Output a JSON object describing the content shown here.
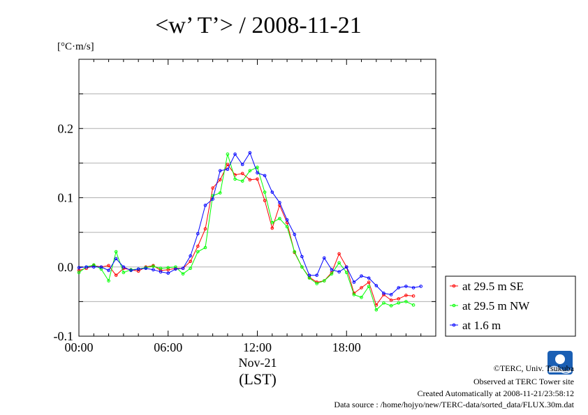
{
  "chart_data": {
    "type": "line",
    "title": "<w’ T’> / 2008-11-21",
    "yunit": "[°C·m/s]",
    "xlabel": "(LST)",
    "xdate_label": "Nov-21",
    "x_tick_labels": [
      "00:00",
      "06:00",
      "12:00",
      "18:00"
    ],
    "x_ticks": [
      0,
      6,
      12,
      18
    ],
    "y_tick_labels": [
      "-0.1",
      "0.0",
      "0.1",
      "0.2"
    ],
    "y_ticks": [
      -0.1,
      0.0,
      0.1,
      0.2
    ],
    "xlim": [
      0,
      24
    ],
    "ylim": [
      -0.1,
      0.3
    ],
    "grid": true,
    "legend_position": "right",
    "series": [
      {
        "name": "at 29.5 m SE",
        "color": "#ff0000",
        "x": [
          0,
          0.5,
          1,
          1.5,
          2,
          2.5,
          3,
          3.5,
          4,
          4.5,
          5,
          5.5,
          6,
          6.5,
          7,
          7.5,
          8,
          8.5,
          9,
          9.5,
          10,
          10.5,
          11,
          11.5,
          12,
          12.5,
          13,
          13.5,
          14,
          14.5,
          15,
          15.5,
          16,
          16.5,
          17,
          17.5,
          18,
          18.5,
          19,
          19.5,
          20,
          20.5,
          21,
          21.5,
          22,
          22.5,
          23
        ],
        "y": [
          -0.005,
          -0.002,
          0.002,
          0.0,
          0.002,
          -0.012,
          -0.002,
          -0.004,
          -0.006,
          0.0,
          0.002,
          -0.005,
          -0.004,
          -0.002,
          -0.002,
          0.008,
          0.03,
          0.055,
          0.114,
          0.126,
          0.148,
          0.133,
          0.135,
          0.126,
          0.127,
          0.096,
          0.056,
          0.089,
          0.064,
          0.021,
          0.0,
          -0.015,
          -0.022,
          -0.02,
          -0.008,
          0.019,
          0.0,
          -0.038,
          -0.03,
          -0.022,
          -0.055,
          -0.04,
          -0.048,
          -0.046,
          -0.041,
          -0.042,
          null
        ]
      },
      {
        "name": "at 29.5 m NW",
        "color": "#00ff00",
        "x": [
          0,
          0.5,
          1,
          1.5,
          2,
          2.5,
          3,
          3.5,
          4,
          4.5,
          5,
          5.5,
          6,
          6.5,
          7,
          7.5,
          8,
          8.5,
          9,
          9.5,
          10,
          10.5,
          11,
          11.5,
          12,
          12.5,
          13,
          13.5,
          14,
          14.5,
          15,
          15.5,
          16,
          16.5,
          17,
          17.5,
          18,
          18.5,
          19,
          19.5,
          20,
          20.5,
          21,
          21.5,
          22,
          22.5,
          23
        ],
        "y": [
          -0.008,
          0.0,
          0.003,
          -0.003,
          -0.02,
          0.022,
          -0.008,
          -0.004,
          -0.003,
          -0.001,
          0.001,
          -0.002,
          -0.001,
          0.0,
          -0.01,
          -0.002,
          0.022,
          0.028,
          0.103,
          0.107,
          0.163,
          0.127,
          0.124,
          0.139,
          0.144,
          0.108,
          0.064,
          0.07,
          0.058,
          0.022,
          0.0,
          -0.016,
          -0.024,
          -0.02,
          -0.01,
          0.006,
          -0.008,
          -0.04,
          -0.044,
          -0.028,
          -0.062,
          -0.052,
          -0.056,
          -0.052,
          -0.05,
          -0.055,
          null
        ]
      },
      {
        "name": "at 1.6 m",
        "color": "#0000ff",
        "x": [
          0,
          0.5,
          1,
          1.5,
          2,
          2.5,
          3,
          3.5,
          4,
          4.5,
          5,
          5.5,
          6,
          6.5,
          7,
          7.5,
          8,
          8.5,
          9,
          9.5,
          10,
          10.5,
          11,
          11.5,
          12,
          12.5,
          13,
          13.5,
          14,
          14.5,
          15,
          15.5,
          16,
          16.5,
          17,
          17.5,
          18,
          18.5,
          19,
          19.5,
          20,
          20.5,
          21,
          21.5,
          22,
          22.5,
          23
        ],
        "y": [
          -0.001,
          0.0,
          0.0,
          0.0,
          -0.005,
          0.012,
          0.0,
          -0.005,
          -0.003,
          -0.002,
          -0.004,
          -0.007,
          -0.009,
          -0.003,
          -0.002,
          0.016,
          0.048,
          0.089,
          0.098,
          0.139,
          0.141,
          0.163,
          0.148,
          0.165,
          0.136,
          0.132,
          0.108,
          0.093,
          0.068,
          0.047,
          0.015,
          -0.012,
          -0.012,
          0.013,
          -0.004,
          -0.007,
          0.0,
          -0.022,
          -0.013,
          -0.016,
          -0.027,
          -0.038,
          -0.04,
          -0.03,
          -0.028,
          -0.03,
          -0.028
        ]
      }
    ]
  },
  "credits": {
    "copyright": "©TERC, Univ. Tsukuba",
    "observed": "Observed at TERC Tower site",
    "created": "Created Automatically at 2008-11-21/23:58:12",
    "source": "Data source : /home/hojyo/new/TERC-data/sorted_data/FLUX.30m.dat"
  },
  "logo": {
    "text": "TERC",
    "color": "#1a5fb4"
  }
}
